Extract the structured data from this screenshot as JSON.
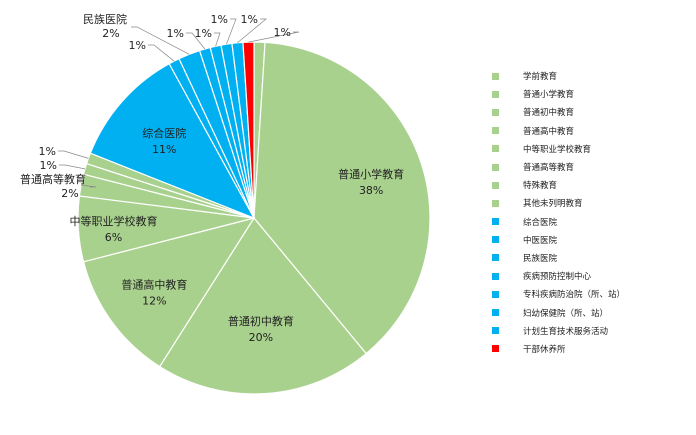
{
  "chart_data": {
    "type": "pie",
    "slices": [
      {
        "name": "学前教育",
        "value": 1,
        "label": "",
        "color": "#a9d18e"
      },
      {
        "name": "普通小学教育",
        "value": 38,
        "label": "38%",
        "color": "#a9d18e"
      },
      {
        "name": "普通初中教育",
        "value": 20,
        "label": "20%",
        "color": "#a9d18e"
      },
      {
        "name": "普通高中教育",
        "value": 12,
        "label": "12%",
        "color": "#a9d18e"
      },
      {
        "name": "中等职业学校教育",
        "value": 6,
        "label": "6%",
        "color": "#a9d18e"
      },
      {
        "name": "普通高等教育",
        "value": 2,
        "label": "2%",
        "color": "#a9d18e"
      },
      {
        "name": "特殊教育",
        "value": 1,
        "label": "1%",
        "color": "#a9d18e"
      },
      {
        "name": "其他未列明教育",
        "value": 1,
        "label": "1%",
        "color": "#a9d18e"
      },
      {
        "name": "综合医院",
        "value": 11,
        "label": "11%",
        "color": "#00b0f0"
      },
      {
        "name": "中医医院",
        "value": 1,
        "label": "1%",
        "color": "#00b0f0"
      },
      {
        "name": "民族医院",
        "value": 2,
        "label": "2%",
        "color": "#00b0f0"
      },
      {
        "name": "疾病预防控制中心",
        "value": 1,
        "label": "1%",
        "color": "#00b0f0"
      },
      {
        "name": "专科疾病防治院（所、站）",
        "value": 1,
        "label": "1%",
        "color": "#00b0f0"
      },
      {
        "name": "妇幼保健院（所、站）",
        "value": 1,
        "label": "1%",
        "color": "#00b0f0"
      },
      {
        "name": "计划生育技术服务活动",
        "value": 1,
        "label": "1%",
        "color": "#00b0f0"
      },
      {
        "name": "干部休养所",
        "value": 1,
        "label": "1%",
        "color": "#ff0000"
      }
    ],
    "legend_position": "right",
    "title": ""
  }
}
